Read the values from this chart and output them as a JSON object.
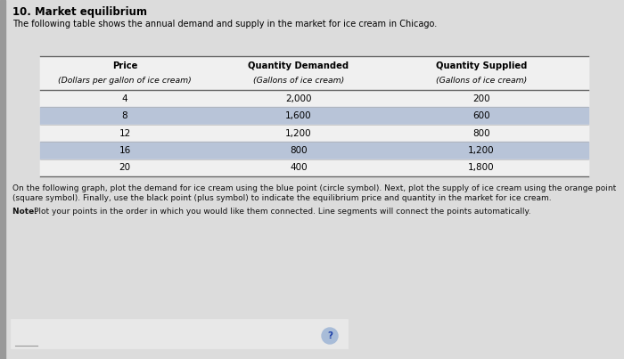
{
  "title": "10. Market equilibrium",
  "subtitle": "The following table shows the annual demand and supply in the market for ice cream in Chicago.",
  "header_line1": [
    "Price",
    "Quantity Demanded",
    "Quantity Supplied"
  ],
  "header_line2": [
    "(Dollars per gallon of ice cream)",
    "(Gallons of ice cream)",
    "(Gallons of ice cream)"
  ],
  "table_data": [
    [
      "4",
      "2,000",
      "200"
    ],
    [
      "8",
      "1,600",
      "600"
    ],
    [
      "12",
      "1,200",
      "800"
    ],
    [
      "16",
      "800",
      "1,200"
    ],
    [
      "20",
      "400",
      "1,800"
    ]
  ],
  "note_text1": "On the following graph, plot the demand for ice cream using the blue point (circle symbol). Next, plot the supply of ice cream using the orange point",
  "note_text2": "(square symbol). Finally, use the black point (plus symbol) to indicate the equilibrium price and quantity in the market for ice cream.",
  "note2_text": "Note: Plot your points in the order in which you would like them connected. Line segments will connect the points automatically.",
  "bg_color": "#c8c8c8",
  "page_bg": "#dcdcdc",
  "table_white": "#f0f0f0",
  "row_alt_color": "#b8c4d8",
  "row_plain_color": "#d8dce8",
  "header_color": "#f0f0f0",
  "text_color": "#000000",
  "title_fontsize": 8.5,
  "subtitle_fontsize": 7.0,
  "header_fontsize": 7.2,
  "table_fontsize": 7.5,
  "note_fontsize": 6.5
}
